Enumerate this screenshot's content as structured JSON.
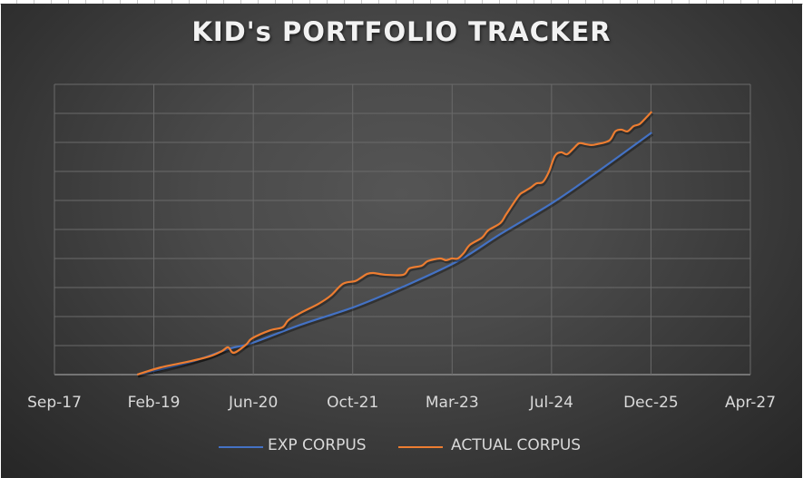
{
  "chart_data": {
    "type": "line",
    "title": "KID's PORTFOLIO TRACKER",
    "xlabel": "",
    "ylabel": "",
    "xlim": [
      "2017-09-25",
      "2027-04-25"
    ],
    "x_tick_labels": [
      "Sep-17",
      "Feb-19",
      "Jun-20",
      "Oct-21",
      "Mar-23",
      "Jul-24",
      "Dec-25",
      "Apr-27"
    ],
    "ylim": [
      0,
      10
    ],
    "y_tick_labels_shown": false,
    "grid": true,
    "legend": "bottom",
    "series": [
      {
        "name": "EXP CORPUS",
        "color": "#4472c4",
        "points": [
          [
            "2018-11",
            0
          ],
          [
            "2019-08",
            0.44
          ],
          [
            "2020-02",
            0.88
          ],
          [
            "2020-06",
            1.09
          ],
          [
            "2021-02",
            1.72
          ],
          [
            "2021-11",
            2.34
          ],
          [
            "2022-07",
            3.03
          ],
          [
            "2023-04",
            3.91
          ],
          [
            "2023-11",
            4.84
          ],
          [
            "2024-08",
            5.97
          ],
          [
            "2025-04",
            7.13
          ],
          [
            "2025-12",
            8.34
          ]
        ]
      },
      {
        "name": "ACTUAL CORPUS",
        "color": "#ed7d31",
        "points": [
          [
            "2018-11",
            0
          ],
          [
            "2019-03",
            0.25
          ],
          [
            "2019-08",
            0.47
          ],
          [
            "2019-11",
            0.63
          ],
          [
            "2020-01",
            0.81
          ],
          [
            "2020-02",
            0.94
          ],
          [
            "2020-03",
            0.75
          ],
          [
            "2020-05",
            1.03
          ],
          [
            "2020-06",
            1.25
          ],
          [
            "2020-09",
            1.53
          ],
          [
            "2020-11",
            1.63
          ],
          [
            "2020-12",
            1.88
          ],
          [
            "2021-02",
            2.13
          ],
          [
            "2021-05",
            2.44
          ],
          [
            "2021-07",
            2.72
          ],
          [
            "2021-09",
            3.13
          ],
          [
            "2021-11",
            3.22
          ],
          [
            "2021-12",
            3.34
          ],
          [
            "2022-01",
            3.47
          ],
          [
            "2022-02",
            3.5
          ],
          [
            "2022-04",
            3.44
          ],
          [
            "2022-07",
            3.44
          ],
          [
            "2022-08",
            3.66
          ],
          [
            "2022-10",
            3.75
          ],
          [
            "2022-11",
            3.91
          ],
          [
            "2023-01",
            4.0
          ],
          [
            "2023-02",
            3.94
          ],
          [
            "2023-03",
            4.0
          ],
          [
            "2023-04",
            4.0
          ],
          [
            "2023-05",
            4.19
          ],
          [
            "2023-06",
            4.47
          ],
          [
            "2023-08",
            4.72
          ],
          [
            "2023-09",
            4.97
          ],
          [
            "2023-11",
            5.22
          ],
          [
            "2023-12",
            5.53
          ],
          [
            "2024-02",
            6.16
          ],
          [
            "2024-03",
            6.31
          ],
          [
            "2024-04",
            6.44
          ],
          [
            "2024-05",
            6.59
          ],
          [
            "2024-06",
            6.63
          ],
          [
            "2024-07",
            6.97
          ],
          [
            "2024-08",
            7.53
          ],
          [
            "2024-09",
            7.66
          ],
          [
            "2024-10",
            7.59
          ],
          [
            "2024-11",
            7.78
          ],
          [
            "2024-12",
            7.97
          ],
          [
            "2025-01",
            7.94
          ],
          [
            "2025-02",
            7.91
          ],
          [
            "2025-03",
            7.94
          ],
          [
            "2025-05",
            8.06
          ],
          [
            "2025-06",
            8.38
          ],
          [
            "2025-07",
            8.44
          ],
          [
            "2025-08",
            8.38
          ],
          [
            "2025-09",
            8.56
          ],
          [
            "2025-10",
            8.63
          ],
          [
            "2025-11",
            8.84
          ],
          [
            "2025-12",
            9.06
          ]
        ]
      }
    ]
  }
}
